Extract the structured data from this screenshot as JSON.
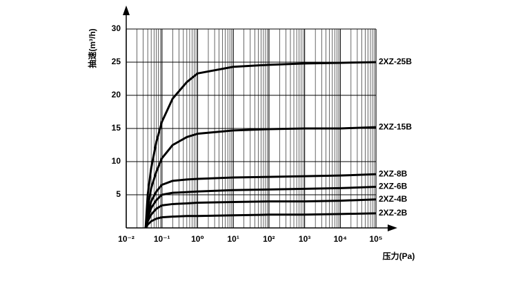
{
  "chart_data": {
    "type": "line",
    "x_label": "压力(Pa)",
    "y_label": "抽速(m³/h)",
    "x": [
      0.035,
      0.04,
      0.05,
      0.07,
      0.1,
      0.2,
      0.5,
      1,
      10,
      100,
      1000,
      10000,
      100000
    ],
    "series": [
      {
        "name": "2XZ-25B",
        "color": "#000000",
        "values": [
          0,
          5,
          9,
          13,
          16,
          19.5,
          22,
          23.3,
          24.3,
          24.6,
          24.8,
          24.9,
          25
        ]
      },
      {
        "name": "2XZ-15B",
        "color": "#000000",
        "values": [
          0,
          3,
          6,
          8.5,
          10.5,
          12.5,
          13.7,
          14.2,
          14.7,
          14.9,
          15,
          15,
          15.2
        ]
      },
      {
        "name": "2XZ-8B",
        "color": "#000000",
        "values": [
          0,
          2,
          4,
          5.5,
          6.5,
          7.1,
          7.3,
          7.4,
          7.6,
          7.7,
          7.8,
          7.9,
          8.1
        ]
      },
      {
        "name": "2XZ-6B",
        "color": "#000000",
        "values": [
          0,
          1.5,
          3,
          4.2,
          5,
          5.3,
          5.4,
          5.5,
          5.7,
          5.8,
          5.9,
          6.0,
          6.2
        ]
      },
      {
        "name": "2XZ-4B",
        "color": "#000000",
        "values": [
          0,
          1,
          2,
          2.9,
          3.4,
          3.6,
          3.7,
          3.8,
          3.9,
          4.0,
          4.0,
          4.1,
          4.3
        ]
      },
      {
        "name": "2XZ-2B",
        "color": "#000000",
        "values": [
          0,
          0.5,
          1,
          1.4,
          1.6,
          1.7,
          1.8,
          1.8,
          1.9,
          2.0,
          2.0,
          2.1,
          2.2
        ]
      }
    ],
    "xscale": "log",
    "xlim": [
      0.01,
      100000
    ],
    "xticks": [
      {
        "value": 0.01,
        "label": "10⁻²"
      },
      {
        "value": 0.1,
        "label": "10⁻¹"
      },
      {
        "value": 1,
        "label": "10⁰"
      },
      {
        "value": 10,
        "label": "10¹"
      },
      {
        "value": 100,
        "label": "10²"
      },
      {
        "value": 1000,
        "label": "10³"
      },
      {
        "value": 10000,
        "label": "10⁴"
      },
      {
        "value": 100000,
        "label": "10⁵"
      }
    ],
    "ylim": [
      0,
      30
    ],
    "yticks": [
      5,
      10,
      15,
      20,
      25,
      30
    ],
    "grid": true
  }
}
